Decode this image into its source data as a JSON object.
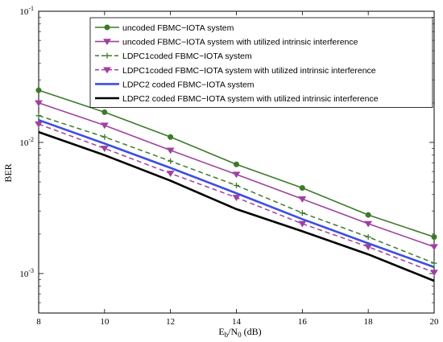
{
  "chart_data": {
    "type": "line",
    "title": "",
    "xlabel": {
      "main": "E",
      "sub1": "b",
      "mid": "/N",
      "sub2": "0",
      "unit": " (dB)"
    },
    "ylabel": "BER",
    "x": [
      8,
      10,
      12,
      14,
      16,
      18,
      20
    ],
    "xlim": [
      8,
      20
    ],
    "ylim": [
      0.0005,
      0.1
    ],
    "yscale": "log",
    "xticks": [
      "8",
      "10",
      "12",
      "14",
      "16",
      "18",
      "20"
    ],
    "yticks": [
      {
        "base": "10",
        "exp": "-3",
        "value": 0.001
      },
      {
        "base": "10",
        "exp": "-2",
        "value": 0.01
      },
      {
        "base": "10",
        "exp": "-1",
        "value": 0.1
      }
    ],
    "grid": false,
    "legend_position": "top-right",
    "series": [
      {
        "name": "uncoded FBMC−IOTA system",
        "color": "#3c7a2a",
        "style": "solid",
        "marker": "circle",
        "values": [
          0.025,
          0.017,
          0.011,
          0.0068,
          0.0045,
          0.0028,
          0.0019
        ]
      },
      {
        "name": "uncoded FBMC−IOTA system with utilized intrinsic interference",
        "color": "#a040a0",
        "style": "solid",
        "marker": "triangle-down",
        "values": [
          0.02,
          0.0135,
          0.0087,
          0.0057,
          0.0037,
          0.0024,
          0.0016
        ]
      },
      {
        "name": "LDPC1coded FBMC−IOTA system",
        "color": "#3c7a2a",
        "style": "dashed",
        "marker": "plus",
        "values": [
          0.016,
          0.011,
          0.0072,
          0.0047,
          0.0029,
          0.0019,
          0.0012
        ]
      },
      {
        "name": "LDPC1coded FBMC−IOTA system with utilized intrinsic interference",
        "color": "#a040a0",
        "style": "dashed",
        "marker": "triangle-down",
        "values": [
          0.0138,
          0.009,
          0.0058,
          0.0038,
          0.0024,
          0.0016,
          0.00102
        ]
      },
      {
        "name": "LDPC2 coded FBMC−IOTA system",
        "color": "#3d4fe0",
        "style": "solid-thick",
        "marker": "none",
        "values": [
          0.0148,
          0.0098,
          0.0064,
          0.0041,
          0.0026,
          0.0017,
          0.00112
        ]
      },
      {
        "name": "LDPC2 coded FBMC−IOTA system with utilized intrinsic interference",
        "color": "#000000",
        "style": "solid-thick",
        "marker": "none",
        "values": [
          0.012,
          0.008,
          0.0051,
          0.0031,
          0.0021,
          0.0014,
          0.00088
        ]
      }
    ]
  }
}
